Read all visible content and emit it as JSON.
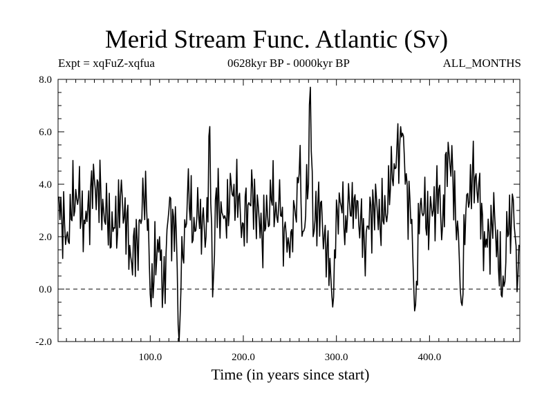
{
  "chart_data": {
    "type": "line",
    "title": "Merid Stream Func. Atlantic (Sv)",
    "subtitle_left": "Expt = xqFuZ-xqfua",
    "subtitle_center": "0628kyr BP - 0000kyr BP",
    "subtitle_right": "ALL_MONTHS",
    "xlabel": "Time (in years since start)",
    "ylabel": "",
    "xlim": [
      1,
      497
    ],
    "ylim": [
      -2.0,
      8.0
    ],
    "xticks": [
      100,
      200,
      300,
      400
    ],
    "xtick_labels": [
      "100.0",
      "200.0",
      "300.0",
      "400.0"
    ],
    "xtick_minor_step": 10,
    "yticks": [
      -2,
      0,
      2,
      4,
      6,
      8
    ],
    "ytick_labels": [
      "-2.0",
      "0.0",
      "2.0",
      "4.0",
      "6.0",
      "8.0"
    ],
    "ytick_minor_step": 0.5,
    "reference_line": 0.0,
    "series": [
      {
        "name": "Merid Stream Func. Atlantic",
        "x": [
          1,
          10,
          20,
          30,
          40,
          50,
          60,
          70,
          80,
          90,
          95,
          100,
          110,
          113,
          120,
          128,
          131,
          133,
          140,
          148,
          152,
          160,
          164,
          167,
          170,
          180,
          190,
          200,
          210,
          220,
          230,
          240,
          250,
          260,
          264,
          270,
          272,
          275,
          280,
          290,
          297,
          300,
          310,
          320,
          330,
          340,
          350,
          360,
          370,
          380,
          385,
          390,
          400,
          410,
          414,
          420,
          430,
          434,
          440,
          450,
          460,
          470,
          478,
          484,
          490,
          494,
          497
        ],
        "y": [
          3.5,
          2.0,
          3.8,
          2.5,
          4.2,
          3.0,
          2.2,
          3.5,
          1.0,
          2.5,
          4.5,
          -0.2,
          2.0,
          -0.7,
          3.0,
          2.2,
          -2.0,
          0.0,
          3.6,
          2.2,
          2.8,
          2.0,
          6.2,
          -0.3,
          3.4,
          2.8,
          4.0,
          2.5,
          3.8,
          2.0,
          3.4,
          2.8,
          1.2,
          4.4,
          2.2,
          4.0,
          7.7,
          2.0,
          3.3,
          1.6,
          -0.3,
          3.4,
          2.8,
          3.6,
          1.8,
          3.2,
          2.6,
          4.2,
          5.8,
          2.5,
          -0.6,
          3.2,
          2.6,
          3.8,
          2.4,
          5.6,
          2.6,
          -0.5,
          3.6,
          4.4,
          1.6,
          2.8,
          -0.3,
          2.0,
          3.4,
          -0.1,
          1.6
        ]
      }
    ],
    "colors": {
      "line": "#000000",
      "axis": "#000000",
      "background": "#ffffff"
    }
  }
}
